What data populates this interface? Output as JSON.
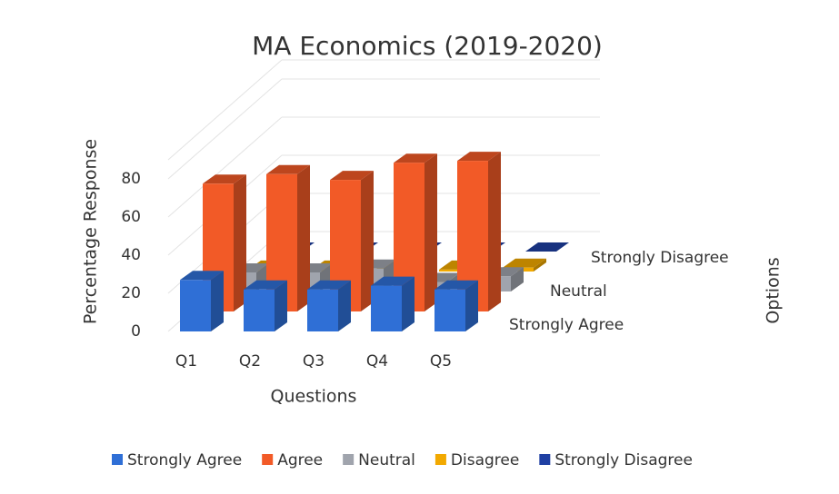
{
  "chart_data": {
    "type": "bar3d",
    "title": "MA Economics (2019-2020)",
    "x_label": "Questions",
    "y_label": "Percentage Response",
    "z_label": "Options",
    "categories": [
      "Q1",
      "Q2",
      "Q3",
      "Q4",
      "Q5"
    ],
    "series": [
      {
        "name": "Strongly Agree",
        "color": "#2f6fd6",
        "values": [
          27,
          22,
          22,
          24,
          22
        ]
      },
      {
        "name": "Agree",
        "color": "#f25a27",
        "values": [
          67,
          72,
          69,
          78,
          79
        ]
      },
      {
        "name": "Neutral",
        "color": "#a0a4ad",
        "values": [
          10,
          10,
          12,
          5,
          8
        ]
      },
      {
        "name": "Disagree",
        "color": "#f2a900",
        "values": [
          1,
          1,
          1,
          1,
          2
        ]
      },
      {
        "name": "Strongly Disagree",
        "color": "#1f40a3",
        "values": [
          0,
          0,
          0,
          0,
          0
        ]
      }
    ],
    "ylim": [
      0,
      90
    ],
    "yticks": [
      0,
      20,
      40,
      60,
      80
    ],
    "grid": true,
    "legend": "bottom"
  }
}
